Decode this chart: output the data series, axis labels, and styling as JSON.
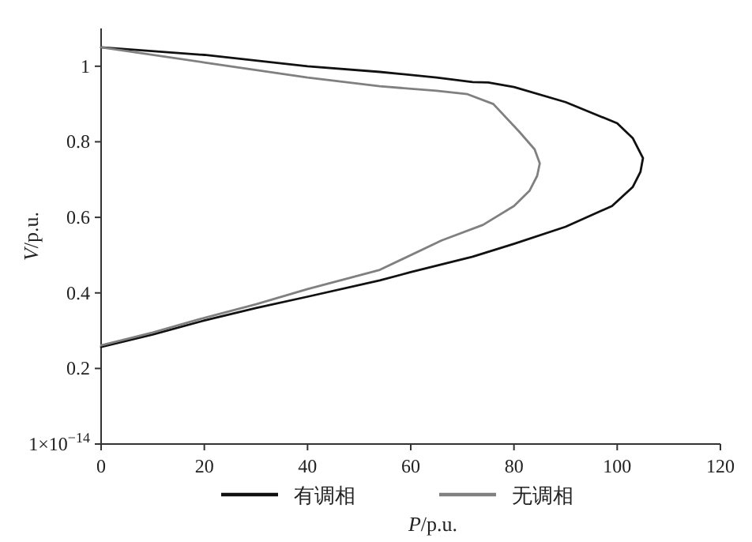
{
  "chart_data": {
    "type": "line",
    "xlabel": "P/p.u.",
    "ylabel": "V/p.u.",
    "xlim": [
      0,
      120
    ],
    "xticks": [
      0,
      20,
      40,
      60,
      80,
      100,
      120
    ],
    "ylim": [
      1e-14,
      1.1
    ],
    "yticks": [
      {
        "value": 1e-14,
        "label": "1×10$^{−14}$"
      },
      0.2,
      0.4,
      0.6,
      0.8,
      1
    ],
    "legend": "bottom",
    "grid": false,
    "marker": "none",
    "line_style": "solid",
    "series": [
      {
        "name": "有调相",
        "color": "#111111",
        "x": [
          0,
          20,
          40,
          54,
          65,
          72,
          75,
          80,
          90,
          100,
          103,
          105,
          104.5,
          103,
          99,
          90,
          80,
          72,
          60,
          54,
          40,
          30,
          20,
          10,
          0
        ],
        "values": [
          1.05,
          1.03,
          1.0,
          0.985,
          0.97,
          0.958,
          0.957,
          0.945,
          0.905,
          0.849,
          0.81,
          0.757,
          0.72,
          0.68,
          0.63,
          0.575,
          0.53,
          0.496,
          0.455,
          0.433,
          0.39,
          0.36,
          0.327,
          0.29,
          0.257
        ]
      },
      {
        "name": "无调相",
        "color": "#808080",
        "x": [
          0,
          20,
          40,
          54,
          65,
          71,
          76,
          81,
          84,
          85,
          84.5,
          83,
          80,
          74,
          66,
          54,
          40,
          30,
          20,
          10,
          0
        ],
        "values": [
          1.05,
          1.01,
          0.97,
          0.947,
          0.935,
          0.926,
          0.9,
          0.827,
          0.78,
          0.743,
          0.71,
          0.67,
          0.63,
          0.58,
          0.539,
          0.461,
          0.41,
          0.37,
          0.334,
          0.295,
          0.261
        ]
      }
    ]
  }
}
